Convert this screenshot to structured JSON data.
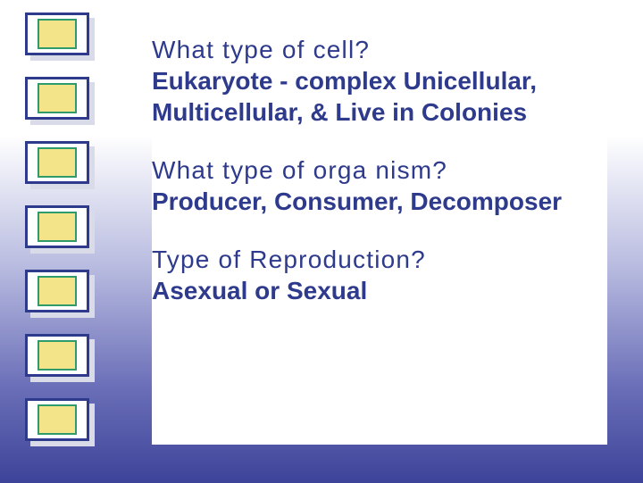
{
  "slide": {
    "background_gradient": [
      "#ffffff",
      "#b9bce0",
      "#6b6fb8",
      "#3d4399"
    ],
    "bullet_style": {
      "outer_border": "#2e3a8c",
      "outer_fill": "#ffffff",
      "inner_border": "#2f9a6c",
      "inner_fill": "#f3e48a",
      "shadow": "#d9dbe8",
      "count": 7
    },
    "text_color": "#2e3a8c",
    "question_fontsize": 28,
    "answer_fontsize": 28,
    "blocks": [
      {
        "question": "What type of cell?",
        "answer": "Eukaryote - complex Unicellular, Multicellular, & Live in Colonies"
      },
      {
        "question": "What type of orga nism?",
        "answer": "Producer, Consumer, Decomposer"
      },
      {
        "question": "Type of Reproduction?",
        "answer": "Asexual or Sexual"
      }
    ]
  }
}
